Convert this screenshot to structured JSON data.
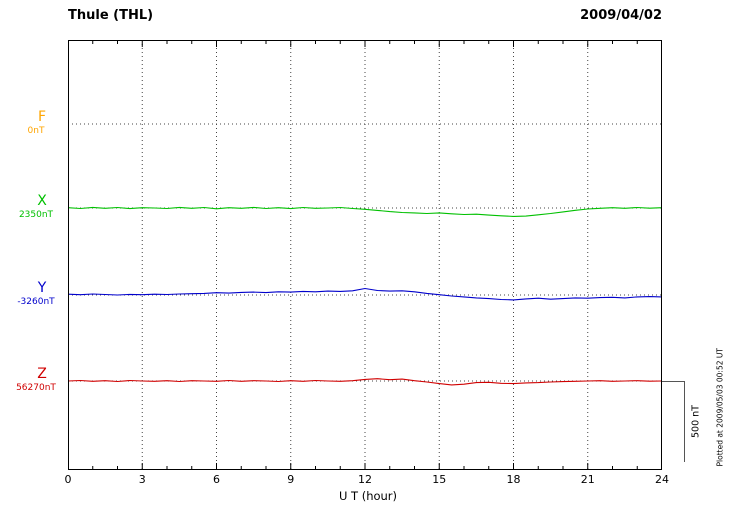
{
  "header": {
    "title": "Thule (THL)",
    "date": "2009/04/02"
  },
  "axis": {
    "x_label": "U T (hour)",
    "x_ticks": [
      "0",
      "3",
      "6",
      "9",
      "12",
      "15",
      "18",
      "21",
      "24"
    ],
    "x_min": 0,
    "x_max": 24
  },
  "scale_bar": {
    "label": "500 nT",
    "nT": 500
  },
  "footer_note": "Plotted at 2009/05/03 00:52 UT",
  "chart_data": {
    "type": "line",
    "title": "Thule (THL) magnetogram",
    "date": "2009/04/02",
    "xlabel": "U T (hour)",
    "x_range": [
      0,
      24
    ],
    "sample_step_hours": 0.5,
    "scale_bar_nT": 500,
    "grid": "dotted vertical every 3 h, dotted horizontal at each channel baseline",
    "channels": [
      {
        "id": "F",
        "label": "F",
        "value_label": "0nT",
        "baseline_nT": 0,
        "color": "#ffa500",
        "has_trace": false
      },
      {
        "id": "X",
        "label": "X",
        "value_label": "2350nT",
        "baseline_nT": 2350,
        "color": "#00c000",
        "has_trace": true
      },
      {
        "id": "Y",
        "label": "Y",
        "value_label": "-3260nT",
        "baseline_nT": -3260,
        "color": "#0000cc",
        "has_trace": true
      },
      {
        "id": "Z",
        "label": "Z",
        "value_label": "56270nT",
        "baseline_nT": 56270,
        "color": "#d00000",
        "has_trace": true
      }
    ],
    "series": [
      {
        "channel": "X",
        "deviation_nT": [
          2,
          -3,
          4,
          -2,
          3,
          -4,
          2,
          0,
          -3,
          4,
          -2,
          3,
          -5,
          2,
          -2,
          4,
          -3,
          2,
          -4,
          3,
          -2,
          0,
          3,
          -3,
          -8,
          -15,
          -22,
          -28,
          -30,
          -34,
          -30,
          -36,
          -40,
          -38,
          -44,
          -48,
          -52,
          -50,
          -42,
          -34,
          -24,
          -14,
          -6,
          -2,
          2,
          -2,
          3,
          -1,
          2
        ]
      },
      {
        "channel": "Y",
        "deviation_nT": [
          5,
          2,
          6,
          3,
          0,
          4,
          2,
          5,
          3,
          6,
          8,
          10,
          14,
          12,
          16,
          18,
          15,
          20,
          18,
          22,
          20,
          24,
          22,
          26,
          40,
          28,
          24,
          26,
          20,
          10,
          2,
          -6,
          -12,
          -18,
          -22,
          -28,
          -30,
          -24,
          -20,
          -26,
          -22,
          -18,
          -20,
          -16,
          -14,
          -18,
          -12,
          -10,
          -12
        ]
      },
      {
        "channel": "Z",
        "deviation_nT": [
          0,
          3,
          -2,
          2,
          -3,
          3,
          0,
          -2,
          2,
          -3,
          2,
          0,
          -2,
          3,
          -2,
          2,
          0,
          -3,
          2,
          -2,
          3,
          0,
          -2,
          2,
          10,
          14,
          8,
          12,
          2,
          -6,
          -16,
          -24,
          -20,
          -10,
          -8,
          -14,
          -16,
          -12,
          -10,
          -6,
          -4,
          -2,
          0,
          2,
          -2,
          0,
          2,
          -1,
          0
        ]
      }
    ]
  }
}
